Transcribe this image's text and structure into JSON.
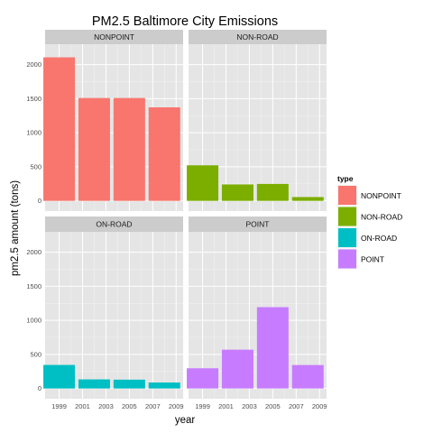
{
  "chart_data": {
    "type": "bar",
    "title": "PM2.5 Baltimore City Emissions",
    "xlabel": "year",
    "ylabel": "pm2.5 amount (tons)",
    "ylim": [
      -150,
      2300
    ],
    "yticks": [
      0,
      500,
      1000,
      1500,
      2000
    ],
    "categories": [
      "1999",
      "2002",
      "2005",
      "2008"
    ],
    "x_tick_labels": [
      "1999",
      "2001",
      "2003",
      "2005",
      "2007",
      "2009"
    ],
    "x_tick_values": [
      1999,
      2001,
      2003,
      2005,
      2007,
      2009
    ],
    "x_values": [
      1999,
      2002,
      2005,
      2008
    ],
    "xlim": [
      1997.8,
      2009.6
    ],
    "grid": true,
    "legend_position": "right",
    "legend_title": "type",
    "series": [
      {
        "name": "NONPOINT",
        "color": "#F8766D",
        "values": [
          2107,
          1510,
          1510,
          1373
        ]
      },
      {
        "name": "NON-ROAD",
        "color": "#7CAE00",
        "values": [
          522,
          241,
          249,
          56
        ]
      },
      {
        "name": "ON-ROAD",
        "color": "#00BFC4",
        "values": [
          346,
          134,
          130,
          88
        ]
      },
      {
        "name": "POINT",
        "color": "#C77CFF",
        "values": [
          297,
          570,
          1194,
          345
        ]
      }
    ]
  }
}
